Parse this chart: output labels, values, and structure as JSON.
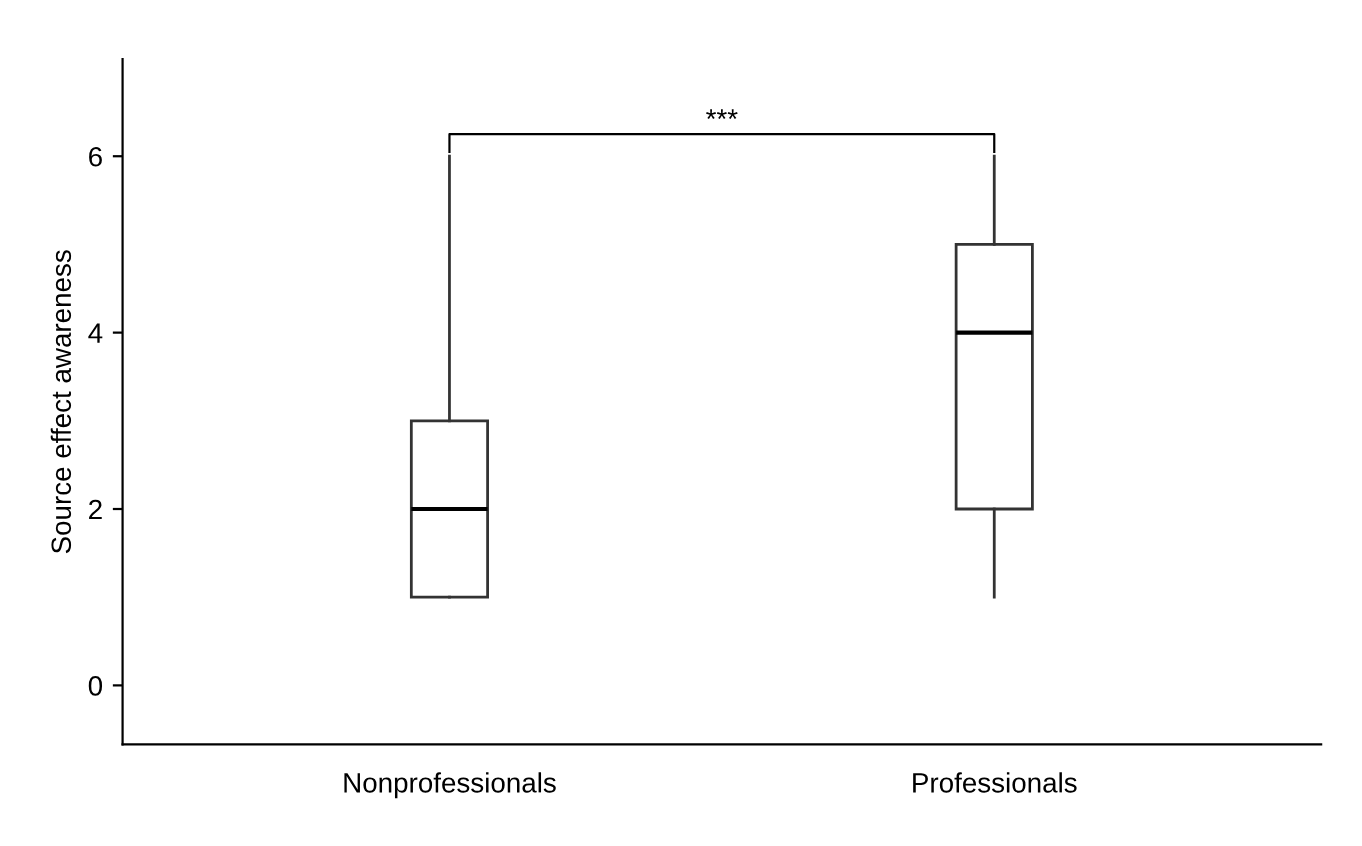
{
  "chart_data": {
    "type": "box",
    "ylabel": "Source effect awareness",
    "categories": [
      "Nonprofessionals",
      "Professionals"
    ],
    "boxes": [
      {
        "low": 1,
        "q1": 1,
        "median": 2,
        "q3": 3,
        "high": 6
      },
      {
        "low": 1,
        "q1": 2,
        "median": 4,
        "q3": 5,
        "high": 6
      }
    ],
    "ylim": [
      -0.67,
      7.1
    ],
    "yticks": [
      0,
      2,
      4,
      6
    ],
    "grid": false,
    "annotations": [
      "***"
    ]
  }
}
